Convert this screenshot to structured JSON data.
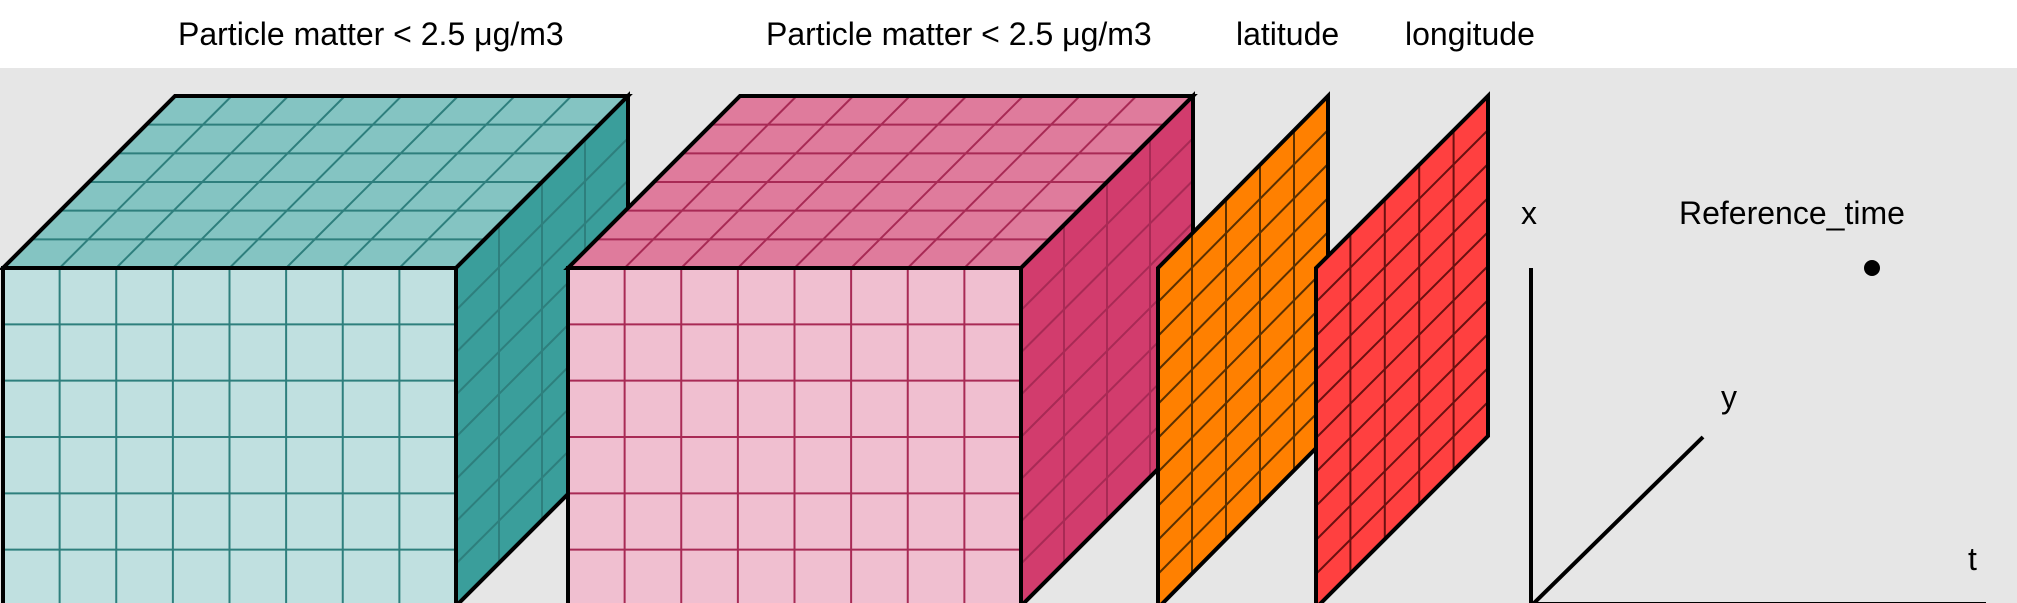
{
  "labels": {
    "cube1": "Particle matter < 2.5 μg/m3",
    "cube2": "Particle matter < 2.5 μg/m3",
    "latitude": "latitude",
    "longitude": "longitude"
  },
  "axes": {
    "x": "x",
    "y": "y",
    "t": "t",
    "reference": "Reference_time"
  },
  "colors": {
    "panel_bg": "#e6e6e6",
    "cube1_front": "#c0e0e0",
    "cube1_top": "#84c4c2",
    "cube1_side": "#3a9e9b",
    "cube1_grid": "#2e7f7d",
    "cube2_front": "#f0bfd0",
    "cube2_top": "#df7b9c",
    "cube2_side": "#d23c6d",
    "cube2_grid": "#a82a55",
    "latitude_fill": "#ff8000",
    "longitude_fill": "#ff4040"
  }
}
